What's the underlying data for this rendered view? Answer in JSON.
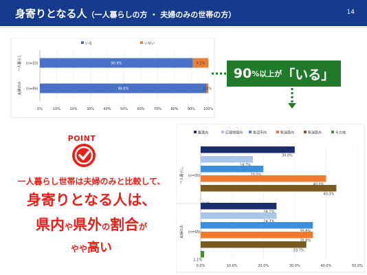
{
  "header": {
    "title_main": "身寄りとなる人",
    "title_sub": "（一人暮らしの方 ・ 夫婦のみの世帯の方）",
    "page_number": "14"
  },
  "colors": {
    "header_bg": "#163a8c",
    "accent_red": "#e8201a",
    "callout_green": "#217a2a"
  },
  "chart_data": [
    {
      "type": "bar",
      "orientation": "horizontal",
      "stacked": true,
      "title": "",
      "legend_position": "top",
      "categories": [
        {
          "group": "一人暮らし",
          "n": "(n=33)"
        },
        {
          "group": "夫婦のみ",
          "n": "(n=86)"
        }
      ],
      "series": [
        {
          "name": "いる",
          "color": "#4a72c4",
          "values": [
            90.9,
            99.0
          ]
        },
        {
          "name": "いない",
          "color": "#e8803a",
          "values": [
            9.1,
            1.0
          ]
        }
      ],
      "data_labels": [
        [
          "90.9%",
          "9.1%"
        ],
        [
          "99.0%",
          "1.0%"
        ]
      ],
      "xlim": [
        0,
        100
      ],
      "x_ticks": [
        "0%",
        "10%",
        "20%",
        "30%",
        "40%",
        "50%",
        "60%",
        "70%",
        "80%",
        "90%",
        "100%"
      ],
      "grid": true
    },
    {
      "type": "bar",
      "orientation": "horizontal",
      "stacked": false,
      "title": "",
      "legend_position": "top",
      "categories": [
        {
          "group": "一人暮らし",
          "n": "(n=30)"
        },
        {
          "group": "夫婦のみ",
          "n": "(n=95)"
        }
      ],
      "series": [
        {
          "name": "集落内",
          "color": "#1a2e6e",
          "values": [
            30.0,
            24.2
          ]
        },
        {
          "name": "広域地域内",
          "color": "#a9c6ea",
          "values": [
            16.7,
            24.2
          ]
        },
        {
          "name": "魚沼市内",
          "color": "#3c8fe0",
          "values": [
            20.0,
            35.8
          ]
        },
        {
          "name": "新潟県内",
          "color": "#f07a30",
          "values": [
            40.0,
            35.8
          ]
        },
        {
          "name": "新潟県外",
          "color": "#7a5a1e",
          "values": [
            43.3,
            33.7
          ]
        },
        {
          "name": "その他",
          "color": "#4a8a3a",
          "values": [
            0.0,
            1.1
          ]
        }
      ],
      "data_labels": [
        [
          "30.0%",
          "16.7%",
          "20.0%",
          "40.0%",
          "43.3%",
          "0.0%"
        ],
        [
          "24.2%",
          "24.2%",
          "35.8%",
          "35.8%",
          "33.7%",
          "1.1%"
        ]
      ],
      "xlim": [
        0,
        50
      ],
      "x_ticks": [
        "0.0%",
        "10.0%",
        "20.0%",
        "30.0%",
        "40.0%",
        "50.0%"
      ],
      "grid": true
    }
  ],
  "callout": {
    "big1": "90",
    "small1": "%以上が",
    "big2": "「いる」"
  },
  "point": {
    "label": "POINT",
    "line1": "一人暮らし世帯は夫婦のみと比較して、",
    "line2": "身寄りとなる人は、",
    "line3_a": "県内",
    "line3_b": "や",
    "line3_c": "県外",
    "line3_d": "の",
    "line3_e": "割合",
    "line3_f": "が",
    "line4_a": "やや",
    "line4_b": "高い"
  }
}
